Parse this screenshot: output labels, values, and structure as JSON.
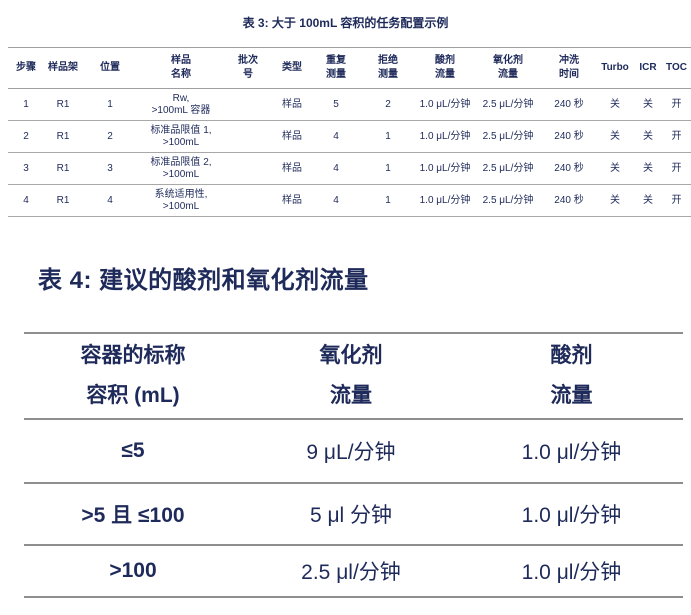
{
  "colors": {
    "text_navy": "#1e2a5a",
    "rule_light_gray": "#a8a8a8",
    "rule_heavy_gray": "#8e8e8e"
  },
  "table3": {
    "title": "表 3: 大于 100mL 容积的任务配置示例",
    "headers": [
      "步骤",
      "样品架",
      "位置",
      "样品\n名称",
      "批次\n号",
      "类型",
      "重复\n测量",
      "拒绝\n测量",
      "酸剂\n流量",
      "氧化剂\n流量",
      "冲洗\n时间",
      "Turbo",
      "ICR",
      "TOC"
    ],
    "rows": [
      [
        "1",
        "R1",
        "1",
        "Rw,\n>100mL 容器",
        "",
        "样品",
        "5",
        "2",
        "1.0 μL/分钟",
        "2.5 μL/分钟",
        "240 秒",
        "关",
        "关",
        "开"
      ],
      [
        "2",
        "R1",
        "2",
        "标准品限值 1,\n>100mL",
        "",
        "样品",
        "4",
        "1",
        "1.0 μL/分钟",
        "2.5 μL/分钟",
        "240 秒",
        "关",
        "关",
        "开"
      ],
      [
        "3",
        "R1",
        "3",
        "标准品限值 2,\n>100mL",
        "",
        "样品",
        "4",
        "1",
        "1.0 μL/分钟",
        "2.5 μL/分钟",
        "240 秒",
        "关",
        "关",
        "开"
      ],
      [
        "4",
        "R1",
        "4",
        "系统适用性,\n>100mL",
        "",
        "样品",
        "4",
        "1",
        "1.0 μL/分钟",
        "2.5 μL/分钟",
        "240 秒",
        "关",
        "关",
        "开"
      ]
    ]
  },
  "table4": {
    "title": "表 4: 建议的酸剂和氧化剂流量",
    "headers": [
      "容器的标称\n容积 (mL)",
      "氧化剂\n流量",
      "酸剂\n流量"
    ],
    "rows": [
      [
        "≤5",
        "9 μL/分钟",
        "1.0 μl/分钟"
      ],
      [
        ">5 且 ≤100",
        "5 μl 分钟",
        "1.0 μl/分钟"
      ],
      [
        ">100",
        "2.5 μl/分钟",
        "1.0 μl/分钟"
      ]
    ]
  }
}
